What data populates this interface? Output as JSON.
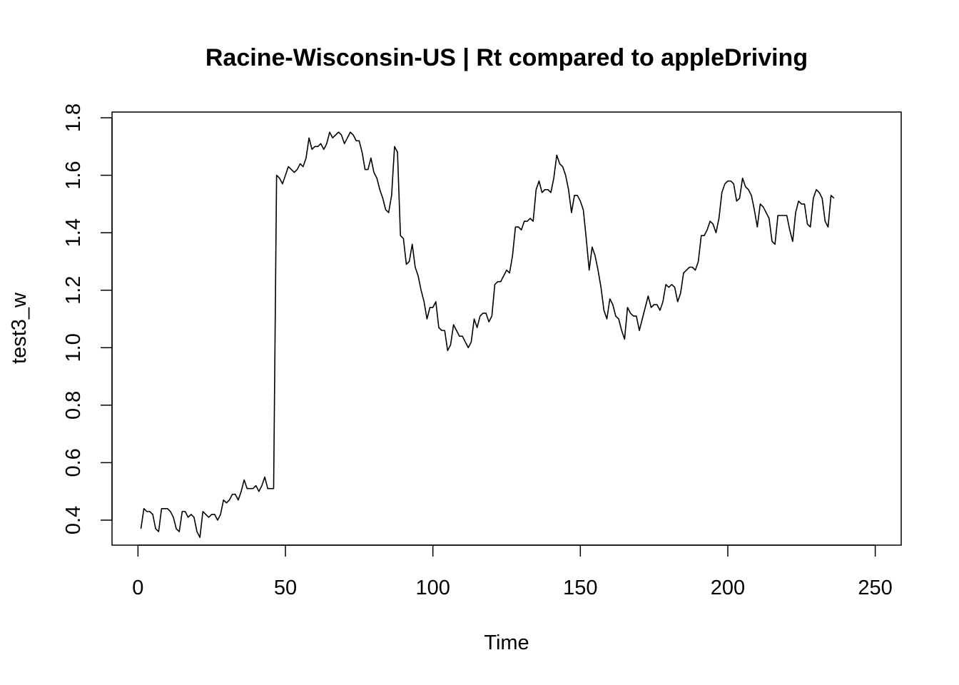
{
  "chart_data": {
    "type": "line",
    "title": "Racine-Wisconsin-US | Rt compared to appleDriving",
    "xlabel": "Time",
    "ylabel": "test3_w",
    "xlim": [
      -8.8,
      258.8
    ],
    "ylim": [
      0.313,
      1.82
    ],
    "xticks": [
      0,
      50,
      100,
      150,
      200,
      250
    ],
    "yticks": [
      0.4,
      0.6,
      0.8,
      1.0,
      1.2,
      1.4,
      1.6,
      1.8
    ],
    "xtick_labels": [
      "0",
      "50",
      "100",
      "150",
      "200",
      "250"
    ],
    "ytick_labels": [
      "0.4",
      "0.6",
      "0.8",
      "1.0",
      "1.2",
      "1.4",
      "1.6",
      "1.8"
    ],
    "line_color": "#000000",
    "series": [
      {
        "x_start": 1,
        "x_step": 1,
        "values": [
          0.37,
          0.44,
          0.43,
          0.43,
          0.42,
          0.37,
          0.36,
          0.44,
          0.44,
          0.44,
          0.43,
          0.41,
          0.37,
          0.36,
          0.43,
          0.43,
          0.41,
          0.42,
          0.41,
          0.36,
          0.34,
          0.43,
          0.42,
          0.41,
          0.42,
          0.42,
          0.4,
          0.42,
          0.47,
          0.46,
          0.47,
          0.49,
          0.49,
          0.47,
          0.5,
          0.54,
          0.51,
          0.51,
          0.51,
          0.52,
          0.5,
          0.52,
          0.55,
          0.51,
          0.51,
          0.51,
          1.6,
          1.59,
          1.57,
          1.6,
          1.63,
          1.62,
          1.61,
          1.62,
          1.64,
          1.63,
          1.66,
          1.73,
          1.69,
          1.7,
          1.7,
          1.71,
          1.69,
          1.71,
          1.75,
          1.73,
          1.74,
          1.75,
          1.74,
          1.71,
          1.73,
          1.75,
          1.74,
          1.72,
          1.72,
          1.68,
          1.62,
          1.62,
          1.66,
          1.61,
          1.59,
          1.55,
          1.52,
          1.48,
          1.47,
          1.53,
          1.7,
          1.68,
          1.39,
          1.38,
          1.29,
          1.3,
          1.36,
          1.28,
          1.25,
          1.2,
          1.16,
          1.1,
          1.14,
          1.14,
          1.16,
          1.07,
          1.06,
          1.06,
          0.99,
          1.01,
          1.08,
          1.06,
          1.04,
          1.04,
          1.02,
          1.0,
          1.02,
          1.1,
          1.07,
          1.11,
          1.12,
          1.12,
          1.09,
          1.11,
          1.22,
          1.23,
          1.23,
          1.25,
          1.27,
          1.26,
          1.32,
          1.42,
          1.42,
          1.41,
          1.44,
          1.44,
          1.45,
          1.44,
          1.55,
          1.58,
          1.54,
          1.55,
          1.55,
          1.54,
          1.59,
          1.67,
          1.64,
          1.63,
          1.6,
          1.55,
          1.47,
          1.53,
          1.53,
          1.51,
          1.48,
          1.38,
          1.27,
          1.35,
          1.32,
          1.27,
          1.21,
          1.13,
          1.1,
          1.17,
          1.15,
          1.11,
          1.1,
          1.06,
          1.03,
          1.14,
          1.12,
          1.11,
          1.11,
          1.06,
          1.1,
          1.14,
          1.18,
          1.14,
          1.15,
          1.15,
          1.13,
          1.16,
          1.22,
          1.21,
          1.22,
          1.21,
          1.16,
          1.19,
          1.26,
          1.27,
          1.28,
          1.28,
          1.27,
          1.3,
          1.39,
          1.39,
          1.41,
          1.44,
          1.43,
          1.4,
          1.45,
          1.54,
          1.57,
          1.58,
          1.58,
          1.57,
          1.51,
          1.52,
          1.59,
          1.56,
          1.55,
          1.53,
          1.48,
          1.42,
          1.5,
          1.49,
          1.47,
          1.45,
          1.37,
          1.36,
          1.46,
          1.46,
          1.46,
          1.46,
          1.41,
          1.37,
          1.47,
          1.51,
          1.5,
          1.5,
          1.43,
          1.42,
          1.52,
          1.55,
          1.54,
          1.52,
          1.44,
          1.42,
          1.53,
          1.52
        ]
      }
    ]
  }
}
